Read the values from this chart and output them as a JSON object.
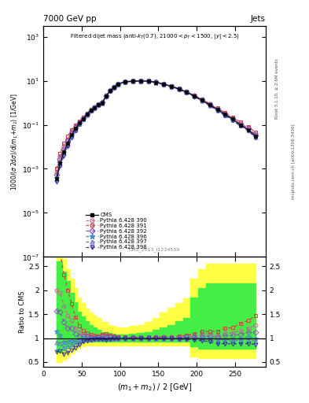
{
  "title_top": "7000 GeV pp",
  "title_right": "Jets",
  "watermark": "CMS_2013_I1224539",
  "ylabel_main": "1000/(σ 2dσ)/d(m_1 + m_2) [1/GeV]",
  "ylabel_ratio": "Ratio to CMS",
  "xlabel": "(m_1 + m_2) / 2 [GeV]",
  "rivet_label": "Rivet 3.1.10, ≥ 2.6M events",
  "mcplots_label": "mcplots.cern.ch [arXiv:1306.3436]",
  "x_centers": [
    17,
    22,
    27,
    32,
    37,
    42,
    47,
    52,
    57,
    62,
    67,
    72,
    77,
    82,
    87,
    92,
    97,
    107,
    117,
    127,
    137,
    147,
    157,
    167,
    177,
    187,
    197,
    207,
    217,
    227,
    237,
    247,
    257,
    267,
    277
  ],
  "cms_y": [
    0.00035,
    0.0018,
    0.006,
    0.015,
    0.035,
    0.07,
    0.12,
    0.19,
    0.3,
    0.45,
    0.6,
    0.8,
    1.0,
    2.0,
    3.5,
    5.0,
    7.0,
    9.0,
    9.5,
    9.8,
    9.5,
    8.5,
    7.0,
    5.5,
    4.2,
    3.0,
    2.0,
    1.3,
    0.8,
    0.5,
    0.3,
    0.18,
    0.1,
    0.06,
    0.03
  ],
  "p390_y": [
    0.0007,
    0.0035,
    0.01,
    0.022,
    0.048,
    0.085,
    0.135,
    0.205,
    0.315,
    0.465,
    0.615,
    0.815,
    1.06,
    2.12,
    3.62,
    5.12,
    7.12,
    9.12,
    9.62,
    9.92,
    9.62,
    8.62,
    7.12,
    5.62,
    4.32,
    3.12,
    2.12,
    1.42,
    0.87,
    0.54,
    0.33,
    0.2,
    0.115,
    0.072,
    0.038
  ],
  "p391_y": [
    0.001,
    0.005,
    0.014,
    0.03,
    0.06,
    0.1,
    0.15,
    0.22,
    0.33,
    0.48,
    0.63,
    0.83,
    1.08,
    2.18,
    3.68,
    5.18,
    7.18,
    9.18,
    9.68,
    9.98,
    9.68,
    8.68,
    7.18,
    5.68,
    4.38,
    3.18,
    2.18,
    1.48,
    0.91,
    0.57,
    0.36,
    0.22,
    0.13,
    0.082,
    0.044
  ],
  "p392_y": [
    0.00055,
    0.0028,
    0.008,
    0.018,
    0.042,
    0.076,
    0.125,
    0.197,
    0.307,
    0.457,
    0.607,
    0.807,
    1.03,
    2.06,
    3.56,
    5.06,
    7.06,
    9.06,
    9.56,
    9.86,
    9.56,
    8.56,
    7.06,
    5.56,
    4.26,
    3.06,
    2.06,
    1.36,
    0.83,
    0.51,
    0.315,
    0.19,
    0.108,
    0.067,
    0.034
  ],
  "p396_y": [
    0.0004,
    0.0019,
    0.0055,
    0.014,
    0.033,
    0.065,
    0.115,
    0.187,
    0.297,
    0.447,
    0.597,
    0.797,
    1.0,
    2.0,
    3.5,
    5.0,
    7.0,
    9.0,
    9.5,
    9.8,
    9.5,
    8.5,
    7.0,
    5.5,
    4.2,
    3.0,
    2.0,
    1.3,
    0.79,
    0.48,
    0.29,
    0.175,
    0.099,
    0.061,
    0.03
  ],
  "p397_y": [
    0.00032,
    0.0016,
    0.0048,
    0.0125,
    0.03,
    0.06,
    0.11,
    0.182,
    0.292,
    0.442,
    0.592,
    0.792,
    0.99,
    1.97,
    3.47,
    4.97,
    6.97,
    8.97,
    9.47,
    9.77,
    9.47,
    8.47,
    6.97,
    5.47,
    4.17,
    2.97,
    1.97,
    1.27,
    0.77,
    0.46,
    0.28,
    0.17,
    0.095,
    0.058,
    0.028
  ],
  "p398_y": [
    0.00025,
    0.0013,
    0.004,
    0.0105,
    0.026,
    0.055,
    0.103,
    0.175,
    0.285,
    0.435,
    0.585,
    0.785,
    0.97,
    1.93,
    3.43,
    4.93,
    6.93,
    8.93,
    9.43,
    9.73,
    9.43,
    8.43,
    6.93,
    5.43,
    4.13,
    2.93,
    1.93,
    1.23,
    0.74,
    0.44,
    0.265,
    0.158,
    0.088,
    0.053,
    0.026
  ],
  "ratio_390": [
    2.0,
    1.95,
    1.67,
    1.47,
    1.37,
    1.21,
    1.13,
    1.08,
    1.05,
    1.03,
    1.025,
    1.019,
    1.06,
    1.06,
    1.034,
    1.024,
    1.017,
    1.013,
    1.013,
    1.012,
    1.013,
    1.015,
    1.017,
    1.022,
    1.029,
    1.04,
    1.06,
    1.092,
    1.088,
    1.08,
    1.1,
    1.11,
    1.15,
    1.2,
    1.27
  ],
  "ratio_391": [
    2.86,
    2.78,
    2.33,
    2.0,
    1.71,
    1.43,
    1.25,
    1.16,
    1.1,
    1.067,
    1.05,
    1.038,
    1.08,
    1.09,
    1.051,
    1.036,
    1.026,
    1.02,
    1.019,
    1.018,
    1.019,
    1.023,
    1.026,
    1.033,
    1.043,
    1.06,
    1.09,
    1.138,
    1.138,
    1.14,
    1.2,
    1.22,
    1.3,
    1.37,
    1.47
  ],
  "ratio_392": [
    1.57,
    1.56,
    1.33,
    1.2,
    1.2,
    1.086,
    1.042,
    1.037,
    1.023,
    1.016,
    1.012,
    1.009,
    1.03,
    1.03,
    1.017,
    1.012,
    1.009,
    1.007,
    1.006,
    1.006,
    1.006,
    1.007,
    1.009,
    1.011,
    1.014,
    1.02,
    1.03,
    1.046,
    1.038,
    1.02,
    1.05,
    1.056,
    1.08,
    1.117,
    1.13
  ],
  "ratio_396": [
    1.14,
    1.06,
    0.917,
    0.933,
    0.943,
    0.929,
    0.958,
    0.984,
    0.99,
    0.993,
    0.995,
    1.0,
    1.0,
    1.0,
    0.997,
    0.997,
    0.997,
    0.997,
    0.997,
    0.997,
    0.997,
    0.997,
    0.997,
    0.997,
    0.997,
    0.997,
    0.997,
    0.997,
    0.988,
    0.96,
    0.967,
    0.972,
    0.99,
    1.017,
    1.0
  ],
  "ratio_397": [
    0.914,
    0.889,
    0.8,
    0.833,
    0.857,
    0.857,
    0.917,
    0.958,
    0.973,
    0.982,
    0.987,
    0.99,
    0.99,
    0.985,
    0.991,
    0.994,
    0.996,
    0.997,
    0.997,
    0.997,
    0.997,
    0.996,
    0.996,
    0.995,
    0.993,
    0.99,
    0.985,
    0.977,
    0.963,
    0.92,
    0.933,
    0.944,
    0.95,
    0.967,
    0.933
  ],
  "ratio_398": [
    0.714,
    0.722,
    0.667,
    0.7,
    0.743,
    0.786,
    0.858,
    0.921,
    0.95,
    0.967,
    0.975,
    0.981,
    0.97,
    0.965,
    0.98,
    0.986,
    0.99,
    0.992,
    0.992,
    0.992,
    0.992,
    0.992,
    0.99,
    0.987,
    0.983,
    0.977,
    0.965,
    0.946,
    0.925,
    0.88,
    0.883,
    0.878,
    0.88,
    0.883,
    0.867
  ],
  "green_band_lo": [
    0.72,
    0.72,
    0.75,
    0.8,
    0.83,
    0.87,
    0.9,
    0.92,
    0.93,
    0.93,
    0.93,
    0.93,
    0.93,
    0.93,
    0.93,
    0.93,
    0.93,
    0.93,
    0.93,
    0.93,
    0.93,
    0.93,
    0.93,
    0.93,
    0.93,
    0.93,
    0.82,
    0.77,
    0.77,
    0.77,
    0.77,
    0.77,
    0.77,
    0.77,
    0.77
  ],
  "green_band_hi": [
    2.6,
    2.6,
    2.4,
    2.2,
    1.95,
    1.75,
    1.55,
    1.45,
    1.35,
    1.28,
    1.22,
    1.17,
    1.12,
    1.12,
    1.1,
    1.09,
    1.08,
    1.08,
    1.09,
    1.1,
    1.12,
    1.17,
    1.22,
    1.28,
    1.35,
    1.42,
    1.85,
    2.05,
    2.15,
    2.15,
    2.15,
    2.15,
    2.15,
    2.15,
    2.15
  ],
  "yellow_band_lo": [
    0.5,
    0.5,
    0.55,
    0.62,
    0.68,
    0.74,
    0.79,
    0.83,
    0.85,
    0.85,
    0.85,
    0.85,
    0.85,
    0.85,
    0.85,
    0.85,
    0.85,
    0.85,
    0.85,
    0.85,
    0.85,
    0.85,
    0.85,
    0.85,
    0.85,
    0.85,
    0.62,
    0.58,
    0.58,
    0.58,
    0.58,
    0.58,
    0.58,
    0.58,
    0.58
  ],
  "yellow_band_hi": [
    2.8,
    2.8,
    2.65,
    2.45,
    2.25,
    2.05,
    1.85,
    1.73,
    1.62,
    1.53,
    1.47,
    1.42,
    1.33,
    1.33,
    1.28,
    1.25,
    1.23,
    1.23,
    1.25,
    1.28,
    1.33,
    1.42,
    1.53,
    1.63,
    1.73,
    1.83,
    2.25,
    2.45,
    2.55,
    2.55,
    2.55,
    2.55,
    2.55,
    2.55,
    2.55
  ],
  "colors": {
    "cms": "#111111",
    "p390": "#cc6699",
    "p391": "#cc4444",
    "p392": "#8855bb",
    "p396": "#4488cc",
    "p397": "#6677cc",
    "p398": "#333399"
  },
  "xlim": [
    0,
    290
  ],
  "ylim_main": [
    1e-07,
    3000.0
  ],
  "ylim_ratio": [
    0.4,
    2.7
  ],
  "ratio_yticks": [
    0.5,
    1.0,
    1.5,
    2.0,
    2.5
  ],
  "background_color": "#ffffff"
}
